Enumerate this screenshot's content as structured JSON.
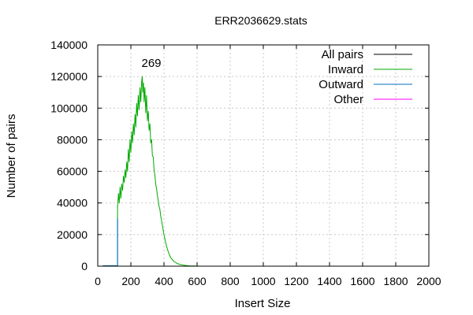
{
  "chart_data": {
    "type": "line",
    "title": "ERR2036629.stats",
    "xlabel": "Insert Size",
    "ylabel": "Number of pairs",
    "xlim": [
      0,
      2000
    ],
    "ylim": [
      0,
      140000
    ],
    "xticks": [
      0,
      200,
      400,
      600,
      800,
      1000,
      1200,
      1400,
      1600,
      1800,
      2000
    ],
    "yticks": [
      0,
      20000,
      40000,
      60000,
      80000,
      100000,
      120000,
      140000
    ],
    "grid": true,
    "legend": "top-right",
    "annotations": [
      {
        "text": "269",
        "x": 269,
        "y": 118000
      }
    ],
    "series": [
      {
        "name": "All pairs",
        "color": "#000000",
        "x": [],
        "y": []
      },
      {
        "name": "Inward",
        "color": "#00aa00",
        "x": [
          119,
          120,
          125,
          130,
          135,
          140,
          145,
          150,
          155,
          160,
          165,
          170,
          175,
          180,
          185,
          190,
          195,
          200,
          205,
          210,
          215,
          220,
          225,
          230,
          235,
          240,
          245,
          250,
          255,
          260,
          265,
          269,
          272,
          276,
          280,
          285,
          290,
          295,
          300,
          305,
          310,
          315,
          320,
          325,
          330,
          335,
          340,
          345,
          350,
          355,
          360,
          365,
          370,
          375,
          380,
          390,
          400,
          410,
          420,
          430,
          440,
          460,
          480,
          500,
          520,
          540,
          560,
          580,
          600,
          620,
          650,
          700
        ],
        "y": [
          30000,
          38000,
          46000,
          40000,
          50000,
          43000,
          52000,
          48000,
          57000,
          53000,
          61000,
          56000,
          66000,
          60000,
          74000,
          66000,
          80000,
          72000,
          85000,
          78000,
          90000,
          83000,
          96000,
          88000,
          103000,
          95000,
          108000,
          99000,
          113000,
          104000,
          117000,
          120000,
          110000,
          116000,
          104000,
          113000,
          97000,
          108000,
          92000,
          98000,
          86000,
          90000,
          78000,
          80000,
          70000,
          69000,
          61000,
          58000,
          52000,
          49000,
          45000,
          42000,
          38000,
          36000,
          32000,
          26000,
          20000,
          15000,
          11000,
          8000,
          5500,
          3000,
          1700,
          1000,
          600,
          300,
          150,
          80,
          40,
          20,
          5,
          0
        ]
      },
      {
        "name": "Outward",
        "color": "#0072bd",
        "x": [
          30,
          90,
          119,
          119,
          120,
          120,
          121
        ],
        "y": [
          300,
          300,
          300,
          30000,
          30000,
          0,
          0
        ]
      },
      {
        "name": "Other",
        "color": "#ff00ff",
        "x": [],
        "y": []
      }
    ]
  }
}
